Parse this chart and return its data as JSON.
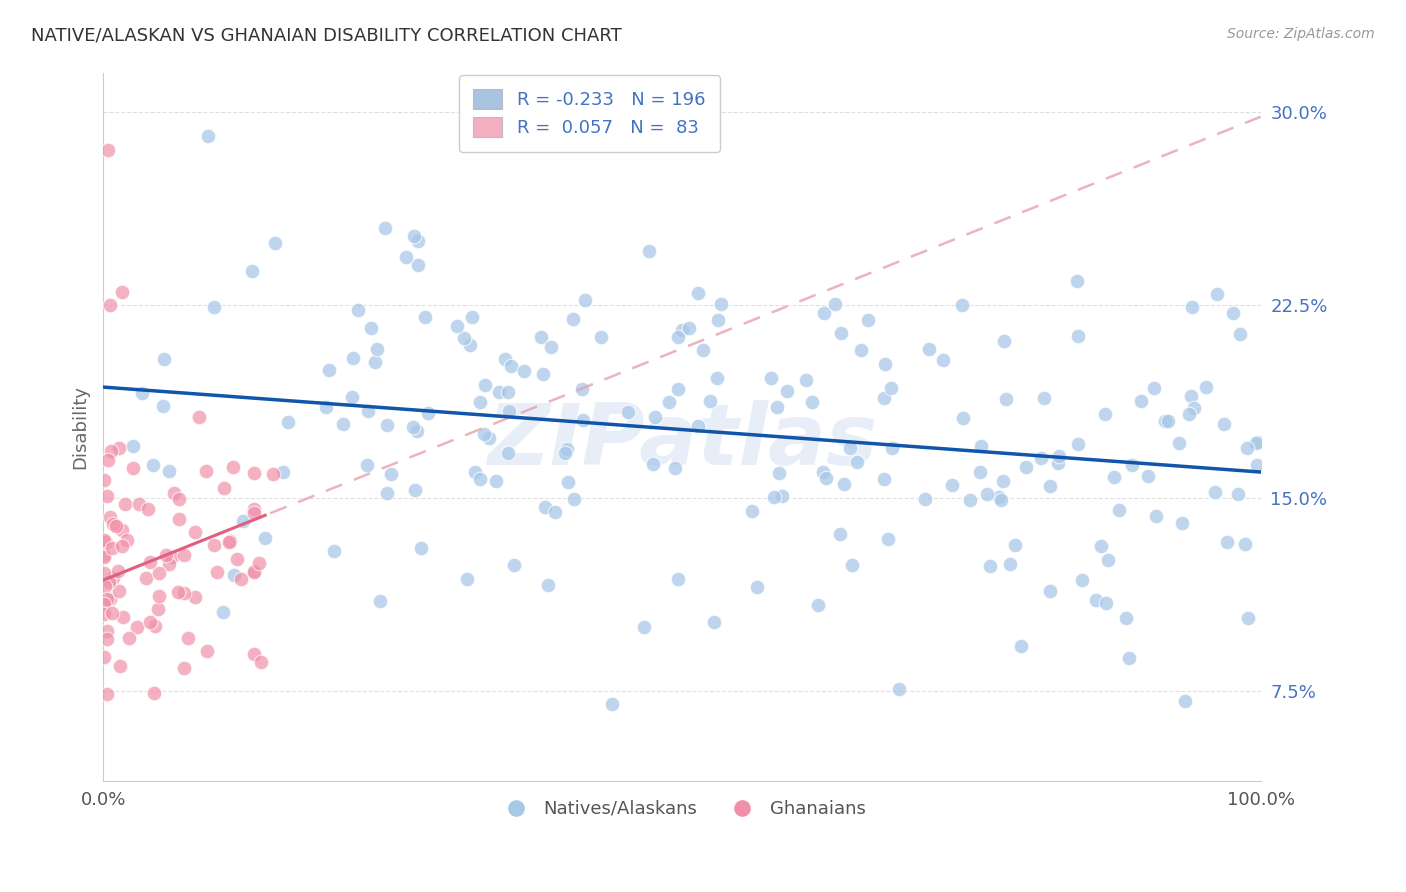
{
  "title": "NATIVE/ALASKAN VS GHANAIAN DISABILITY CORRELATION CHART",
  "source": "Source: ZipAtlas.com",
  "ylabel": "Disability",
  "xlim": [
    0,
    1.0
  ],
  "ylim": [
    0.04,
    0.315
  ],
  "yticks": [
    0.075,
    0.15,
    0.225,
    0.3
  ],
  "ytick_labels": [
    "7.5%",
    "15.0%",
    "22.5%",
    "30.0%"
  ],
  "watermark": "ZIPatlas",
  "blue_R": -0.233,
  "blue_N": 196,
  "pink_R": 0.057,
  "pink_N": 83,
  "blue_legend_color": "#a8c4e0",
  "blue_line_color": "#1155aa",
  "pink_legend_color": "#f4b0c0",
  "pink_line_color": "#e06080",
  "pink_dash_color": "#e8a0b0",
  "blue_scatter_color": "#a8c8e8",
  "pink_scatter_color": "#f090a8",
  "background_color": "#ffffff",
  "title_color": "#333333",
  "grid_color": "#cccccc",
  "tick_color": "#4472c4"
}
